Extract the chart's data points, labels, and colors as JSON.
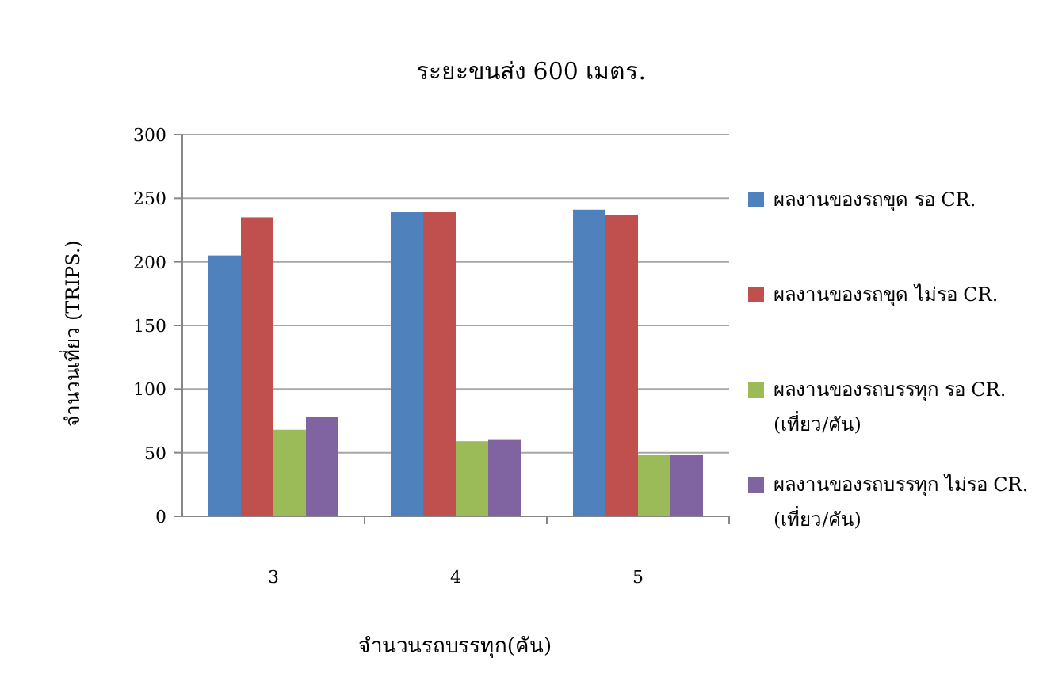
{
  "chart_data": {
    "type": "bar",
    "title": "ระยะขนส่ง 600 เมตร.",
    "xlabel": "จำนวนรถบรรทุก(คัน)",
    "ylabel": "จำนวนเที่ยว (TRIPS.)",
    "categories": [
      "3",
      "4",
      "5"
    ],
    "series": [
      {
        "name": "ผลงานของรถขุด รอ CR.",
        "color": "#4f81bd",
        "values": [
          205,
          239,
          241
        ]
      },
      {
        "name": "ผลงานของรถขุด ไม่รอ CR.",
        "color": "#c0504d",
        "values": [
          235,
          239,
          237
        ]
      },
      {
        "name": "ผลงานของรถบรรทุก รอ CR. (เที่ยว/คัน)",
        "color": "#9bbb59",
        "values": [
          68,
          59,
          48
        ]
      },
      {
        "name": "ผลงานของรถบรรทุก ไม่รอ CR. (เที่ยว/คัน)",
        "color": "#8064a2",
        "values": [
          78,
          60,
          48
        ]
      }
    ],
    "ylim": [
      0,
      300
    ],
    "yticks": [
      0,
      50,
      100,
      150,
      200,
      250,
      300
    ],
    "grid": "y",
    "legend": "right"
  }
}
